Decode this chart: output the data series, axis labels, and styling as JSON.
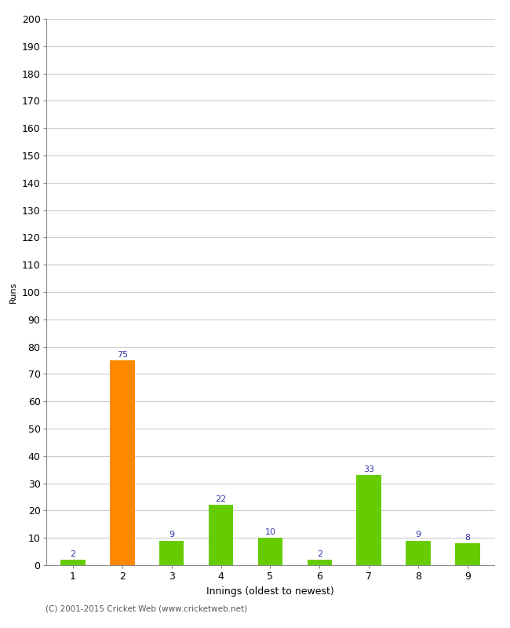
{
  "xlabel": "Innings (oldest to newest)",
  "ylabel": "Runs",
  "categories": [
    "1",
    "2",
    "3",
    "4",
    "5",
    "6",
    "7",
    "8",
    "9"
  ],
  "values": [
    2,
    75,
    9,
    22,
    10,
    2,
    33,
    9,
    8
  ],
  "bar_colors": [
    "#66cc00",
    "#ff8800",
    "#66cc00",
    "#66cc00",
    "#66cc00",
    "#66cc00",
    "#66cc00",
    "#66cc00",
    "#66cc00"
  ],
  "ylim": [
    0,
    200
  ],
  "yticks": [
    0,
    10,
    20,
    30,
    40,
    50,
    60,
    70,
    80,
    90,
    100,
    110,
    120,
    130,
    140,
    150,
    160,
    170,
    180,
    190,
    200
  ],
  "label_color": "#3333aa",
  "label_fontsize": 8,
  "axis_fontsize": 9,
  "ylabel_fontsize": 8,
  "footer": "(C) 2001-2015 Cricket Web (www.cricketweb.net)",
  "background_color": "#ffffff",
  "grid_color": "#cccccc",
  "bar_width": 0.5,
  "spine_color": "#888888"
}
